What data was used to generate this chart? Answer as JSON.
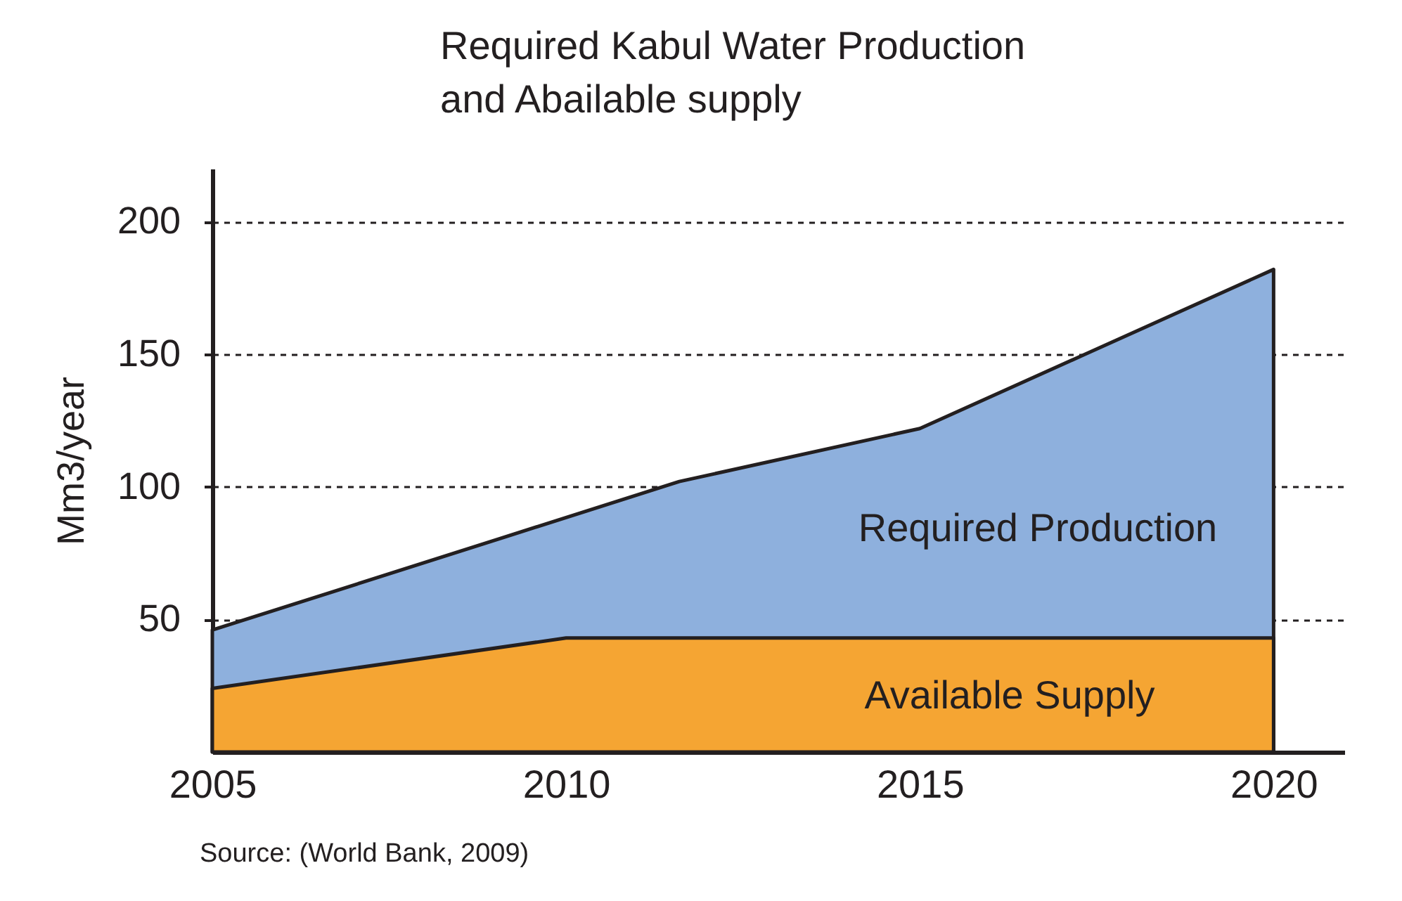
{
  "chart_data": {
    "type": "area",
    "title": "Required Kabul Water Production\nand Abailable supply",
    "ylabel": "Mm3/year",
    "annotations": [
      "Source:  (World Bank, 2009)"
    ],
    "series": [
      {
        "name": "Required Production",
        "color": "#8eb0dd",
        "x": [
          2005,
          2011.6,
          2015,
          2020
        ],
        "values": [
          46,
          102,
          122,
          182
        ]
      },
      {
        "name": "Available Supply",
        "color": "#f5a533",
        "x": [
          2005,
          2010,
          2020
        ],
        "values": [
          24,
          43,
          43
        ]
      }
    ],
    "xlim": [
      2005,
      2021
    ],
    "ylim": [
      0,
      220
    ],
    "xticks": [
      2005,
      2010,
      2015,
      2020
    ],
    "yticks": [
      50,
      100,
      150,
      200
    ],
    "grid": "y",
    "legend": false
  }
}
